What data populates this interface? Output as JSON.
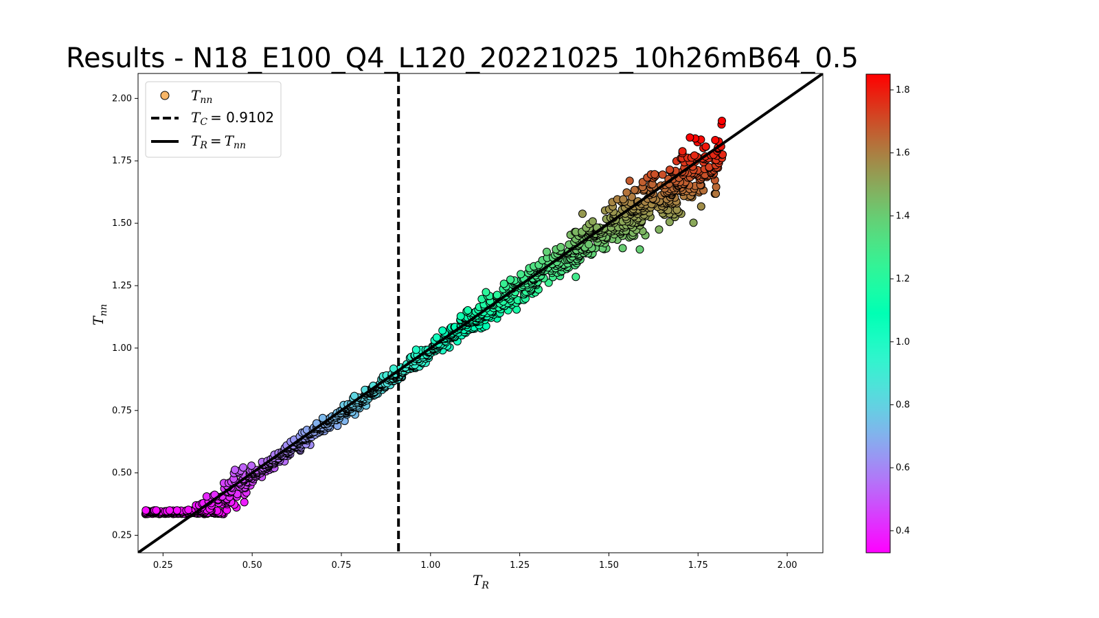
{
  "chart_data": {
    "type": "scatter",
    "title": "Results - N18_E100_Q4_L120_20221025_10h26mB64_0.5",
    "xlabel_main": "T",
    "xlabel_sub": "R",
    "ylabel_main": "T",
    "ylabel_sub": "nn",
    "xlim": [
      0.18,
      2.1
    ],
    "ylim": [
      0.18,
      2.1
    ],
    "xticks": [
      "0.25",
      "0.50",
      "0.75",
      "1.00",
      "1.25",
      "1.50",
      "1.75",
      "2.00"
    ],
    "yticks": [
      "0.25",
      "0.50",
      "0.75",
      "1.00",
      "1.25",
      "1.50",
      "1.75",
      "2.00"
    ],
    "grid": false,
    "legend_position": "top-left",
    "legend": {
      "scatter_main": "T",
      "scatter_sub": "nn",
      "tc_main": "T",
      "tc_sub": "C",
      "tc_value": "= 0.9102",
      "ident_a_main": "T",
      "ident_a_sub": "R",
      "ident_eq": "=",
      "ident_b_main": "T",
      "ident_b_sub": "nn"
    },
    "critical_temperature": 0.9102,
    "identity_line": true,
    "scatter_series": {
      "name": "Tnn",
      "x_range": [
        0.2,
        1.82
      ],
      "y_floor": 0.335,
      "colormap": "rainbow",
      "color_by": "x"
    },
    "colorbar": {
      "range": [
        0.33,
        1.85
      ],
      "ticks": [
        "0.4",
        "0.6",
        "0.8",
        "1.0",
        "1.2",
        "1.4",
        "1.6",
        "1.8"
      ]
    },
    "colors": {
      "marker_edge": "#000000",
      "identity_line": "#000000",
      "critical_line": "#000000"
    }
  }
}
